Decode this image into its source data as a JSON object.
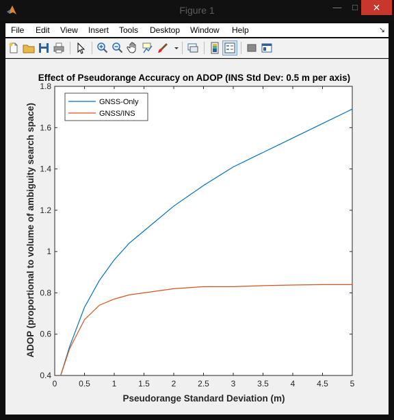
{
  "window": {
    "title": "Figure 1",
    "controls": {
      "minimize": "—",
      "maximize": "□",
      "close": "✕"
    }
  },
  "menu": {
    "items": [
      "File",
      "Edit",
      "View",
      "Insert",
      "Tools",
      "Desktop",
      "Window",
      "Help"
    ],
    "dock_glyph": "↘"
  },
  "toolbar": {
    "buttons": [
      {
        "name": "new-figure",
        "icon": "new-file-icon"
      },
      {
        "name": "open-file",
        "icon": "folder-icon"
      },
      {
        "name": "save-figure",
        "icon": "save-icon"
      },
      {
        "name": "print-figure",
        "icon": "print-icon"
      },
      {
        "name": "edit-plot",
        "icon": "arrow-cursor-icon"
      },
      {
        "name": "zoom-in",
        "icon": "zoom-in-icon"
      },
      {
        "name": "zoom-out",
        "icon": "zoom-out-icon"
      },
      {
        "name": "pan",
        "icon": "hand-icon"
      },
      {
        "name": "data-cursor",
        "icon": "data-cursor-icon"
      },
      {
        "name": "brush",
        "icon": "brush-icon"
      },
      {
        "name": "link-plot",
        "icon": "link-icon"
      },
      {
        "name": "insert-colorbar",
        "icon": "colorbar-icon"
      },
      {
        "name": "insert-legend",
        "icon": "legend-icon"
      },
      {
        "name": "hide-plot-tools",
        "icon": "hide-tools-icon"
      },
      {
        "name": "show-plot-tools",
        "icon": "show-tools-icon"
      }
    ]
  },
  "colors": {
    "series_gnss": "#0072bd",
    "series_ins": "#d95319",
    "close_button": "#c7372d"
  },
  "chart_data": {
    "type": "line",
    "title": "Effect of Pseudorange Accuracy on ADOP (INS Std Dev: 0.5 m per axis)",
    "xlabel": "Pseudorange Standard Deviation (m)",
    "ylabel": "ADOP (proportional to volume of ambiguity search space)",
    "xlim": [
      0,
      5
    ],
    "ylim": [
      0.4,
      1.8
    ],
    "xticks": [
      0,
      0.5,
      1,
      1.5,
      2,
      2.5,
      3,
      3.5,
      4,
      4.5,
      5
    ],
    "xtick_labels": [
      "0",
      "0.5",
      "1",
      "1.5",
      "2",
      "2.5",
      "3",
      "3.5",
      "4",
      "4.5",
      "5"
    ],
    "yticks": [
      0.4,
      0.6,
      0.8,
      1.0,
      1.2,
      1.4,
      1.6,
      1.8
    ],
    "ytick_labels": [
      "0.4",
      "0.6",
      "0.8",
      "1",
      "1.2",
      "1.4",
      "1.6",
      "1.8"
    ],
    "grid": false,
    "legend_position": "top-left",
    "x": [
      0.1,
      0.25,
      0.5,
      0.75,
      1.0,
      1.25,
      1.5,
      2.0,
      2.5,
      3.0,
      3.5,
      4.0,
      4.5,
      5.0
    ],
    "series": [
      {
        "name": "GNSS-Only",
        "values": [
          0.4,
          0.54,
          0.73,
          0.86,
          0.96,
          1.04,
          1.1,
          1.22,
          1.32,
          1.41,
          1.48,
          1.55,
          1.62,
          1.69
        ]
      },
      {
        "name": "GNSS/INS",
        "values": [
          0.4,
          0.53,
          0.67,
          0.74,
          0.77,
          0.79,
          0.8,
          0.82,
          0.83,
          0.83,
          0.835,
          0.838,
          0.84,
          0.84
        ]
      }
    ]
  }
}
